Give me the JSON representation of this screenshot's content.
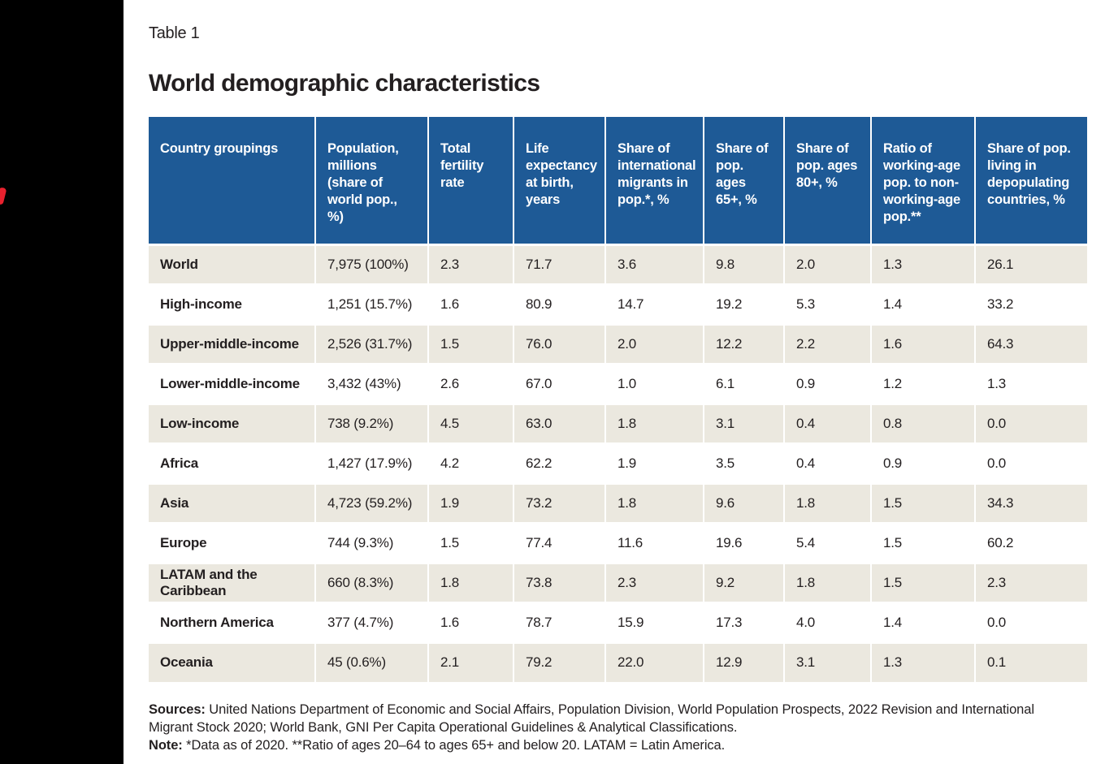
{
  "page": {
    "table_label": "Table 1",
    "title": "World demographic characteristics"
  },
  "colors": {
    "sidebar_bg": "#000000",
    "accent_red": "#e8212e",
    "header_bg": "#1e5a96",
    "stripe_bg": "#ebe8df",
    "text": "#231f20"
  },
  "chart_data": {
    "type": "table",
    "title": "World demographic characteristics",
    "columns": [
      "Country groupings",
      "Population, millions (share of world pop., %)",
      "Total fertility rate",
      "Life expectancy at birth, years",
      "Share of international migrants in pop.*, %",
      "Share of pop. ages 65+, %",
      "Share of pop. ages 80+, %",
      "Ratio of working-age pop. to non-working-age pop.**",
      "Share of pop. living in depopulating countries, %"
    ],
    "rows": [
      {
        "group": "World",
        "values": [
          "7,975 (100%)",
          "2.3",
          "71.7",
          "3.6",
          "9.8",
          "2.0",
          "1.3",
          "26.1"
        ]
      },
      {
        "group": "High-income",
        "values": [
          "1,251 (15.7%)",
          "1.6",
          "80.9",
          "14.7",
          "19.2",
          "5.3",
          "1.4",
          "33.2"
        ]
      },
      {
        "group": "Upper-middle-income",
        "values": [
          "2,526 (31.7%)",
          "1.5",
          "76.0",
          "2.0",
          "12.2",
          "2.2",
          "1.6",
          "64.3"
        ]
      },
      {
        "group": "Lower-middle-income",
        "values": [
          "3,432 (43%)",
          "2.6",
          "67.0",
          "1.0",
          "6.1",
          "0.9",
          "1.2",
          "1.3"
        ]
      },
      {
        "group": "Low-income",
        "values": [
          "738 (9.2%)",
          "4.5",
          "63.0",
          "1.8",
          "3.1",
          "0.4",
          "0.8",
          "0.0"
        ]
      },
      {
        "group": "Africa",
        "values": [
          "1,427 (17.9%)",
          "4.2",
          "62.2",
          "1.9",
          "3.5",
          "0.4",
          "0.9",
          "0.0"
        ]
      },
      {
        "group": "Asia",
        "values": [
          "4,723 (59.2%)",
          "1.9",
          "73.2",
          "1.8",
          "9.6",
          "1.8",
          "1.5",
          "34.3"
        ]
      },
      {
        "group": "Europe",
        "values": [
          "744 (9.3%)",
          "1.5",
          "77.4",
          "11.6",
          "19.6",
          "5.4",
          "1.5",
          "60.2"
        ]
      },
      {
        "group": "LATAM and the Caribbean",
        "values": [
          "660 (8.3%)",
          "1.8",
          "73.8",
          "2.3",
          "9.2",
          "1.8",
          "1.5",
          "2.3"
        ]
      },
      {
        "group": "Northern America",
        "values": [
          "377 (4.7%)",
          "1.6",
          "78.7",
          "15.9",
          "17.3",
          "4.0",
          "1.4",
          "0.0"
        ]
      },
      {
        "group": "Oceania",
        "values": [
          "45 (0.6%)",
          "2.1",
          "79.2",
          "22.0",
          "12.9",
          "3.1",
          "1.3",
          "0.1"
        ]
      }
    ]
  },
  "footer": {
    "sources_label": "Sources:",
    "sources_text": " United Nations Department of Economic and Social Affairs, Population Division, World Population Prospects, 2022 Revision and International Migrant Stock 2020; World Bank, GNI Per Capita Operational Guidelines & Analytical Classifications.",
    "note_label": "Note:",
    "note_text": " *Data as of 2020. **Ratio of ages 20–64 to ages 65+ and below 20. LATAM = Latin America."
  }
}
